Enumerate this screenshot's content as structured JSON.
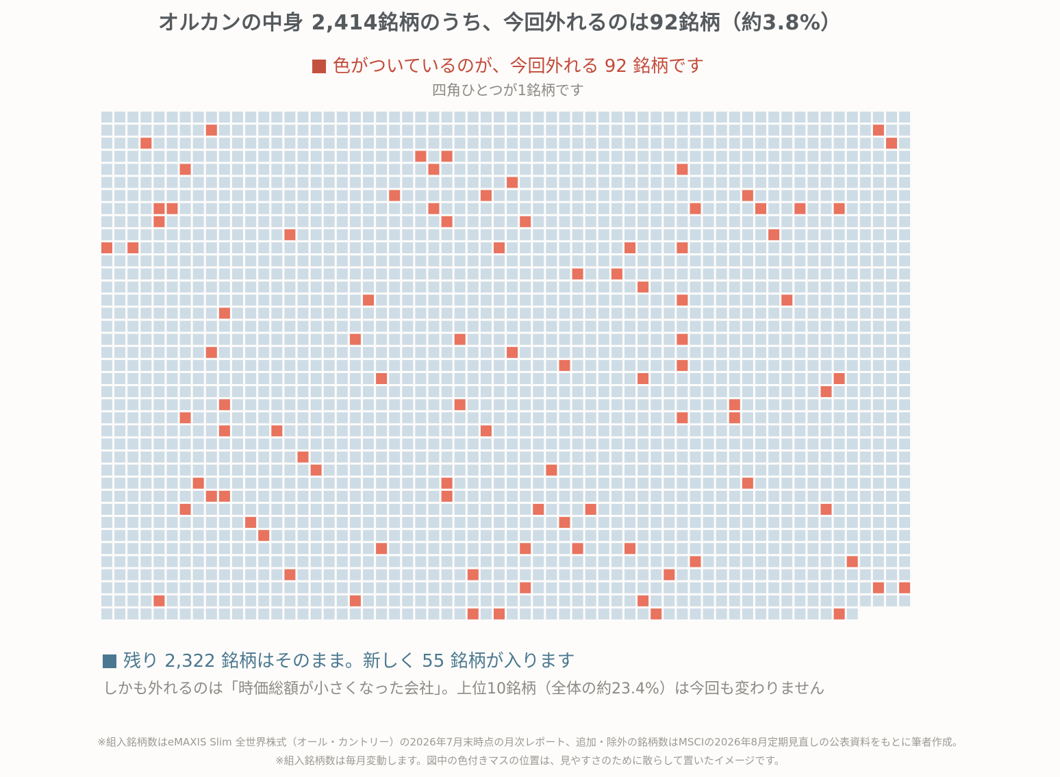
{
  "title": "オルカンの中身 2,414銘柄のうち、今回外れるのは92銘柄（約3.8%）",
  "legend_removed": "色がついているのが、今回外れる 92 銘柄です",
  "subtitle": "四角ひとつが1銘柄です",
  "legend_kept": "残り 2,322 銘柄はそのまま。新しく 55 銘柄が入ります",
  "note": "しかも外れるのは「時価総額が小さくなった会社」。上位10銘柄（全体の約23.4%）は今回も変わりません",
  "source_line1": "※組入銘柄数はeMAXIS Slim 全世界株式（オール・カントリー）の2026年7月末時点の月次レポート、追加・除外の銘柄数はMSCIの2026年8月定期見直しの公表資料をもとに筆者作成。",
  "source_line2": "※組入銘柄数は毎月変動します。図中の色付きマスの位置は、見やすさのために散らして置いたイメージです。",
  "colors": {
    "kept": "#cedce6",
    "removed": "#e8735f",
    "removed_legend": "#c4513f",
    "kept_legend": "#4b7890"
  },
  "chart_data": {
    "type": "waffle",
    "total": 2414,
    "removed": 92,
    "kept": 2322,
    "added": 55,
    "columns": 62,
    "rows": 39,
    "removed_cells": [
      [
        1,
        8
      ],
      [
        1,
        59
      ],
      [
        2,
        3
      ],
      [
        2,
        60
      ],
      [
        3,
        24
      ],
      [
        3,
        26
      ],
      [
        4,
        6
      ],
      [
        4,
        25
      ],
      [
        4,
        44
      ],
      [
        5,
        31
      ],
      [
        6,
        22
      ],
      [
        6,
        29
      ],
      [
        6,
        49
      ],
      [
        7,
        4
      ],
      [
        7,
        5
      ],
      [
        7,
        25
      ],
      [
        7,
        45
      ],
      [
        7,
        50
      ],
      [
        7,
        53
      ],
      [
        7,
        56
      ],
      [
        8,
        4
      ],
      [
        8,
        26
      ],
      [
        8,
        32
      ],
      [
        9,
        14
      ],
      [
        9,
        51
      ],
      [
        10,
        0
      ],
      [
        10,
        2
      ],
      [
        10,
        30
      ],
      [
        10,
        40
      ],
      [
        10,
        44
      ],
      [
        12,
        36
      ],
      [
        12,
        39
      ],
      [
        13,
        41
      ],
      [
        14,
        20
      ],
      [
        14,
        44
      ],
      [
        14,
        52
      ],
      [
        15,
        9
      ],
      [
        17,
        19
      ],
      [
        17,
        27
      ],
      [
        17,
        44
      ],
      [
        18,
        8
      ],
      [
        18,
        31
      ],
      [
        19,
        35
      ],
      [
        19,
        44
      ],
      [
        20,
        21
      ],
      [
        20,
        41
      ],
      [
        20,
        56
      ],
      [
        21,
        55
      ],
      [
        22,
        9
      ],
      [
        22,
        27
      ],
      [
        22,
        48
      ],
      [
        23,
        6
      ],
      [
        23,
        44
      ],
      [
        23,
        48
      ],
      [
        24,
        9
      ],
      [
        24,
        13
      ],
      [
        24,
        29
      ],
      [
        26,
        15
      ],
      [
        27,
        16
      ],
      [
        27,
        34
      ],
      [
        28,
        7
      ],
      [
        28,
        26
      ],
      [
        28,
        49
      ],
      [
        29,
        8
      ],
      [
        29,
        9
      ],
      [
        29,
        26
      ],
      [
        30,
        6
      ],
      [
        30,
        33
      ],
      [
        30,
        37
      ],
      [
        30,
        55
      ],
      [
        31,
        11
      ],
      [
        31,
        35
      ],
      [
        32,
        12
      ],
      [
        33,
        21
      ],
      [
        33,
        32
      ],
      [
        33,
        36
      ],
      [
        33,
        40
      ],
      [
        34,
        45
      ],
      [
        34,
        57
      ],
      [
        35,
        14
      ],
      [
        35,
        28
      ],
      [
        35,
        43
      ],
      [
        36,
        32
      ],
      [
        36,
        59
      ],
      [
        36,
        61
      ],
      [
        37,
        4
      ],
      [
        37,
        19
      ],
      [
        37,
        41
      ],
      [
        38,
        28
      ],
      [
        38,
        30
      ],
      [
        38,
        42
      ],
      [
        38,
        56
      ]
    ]
  }
}
